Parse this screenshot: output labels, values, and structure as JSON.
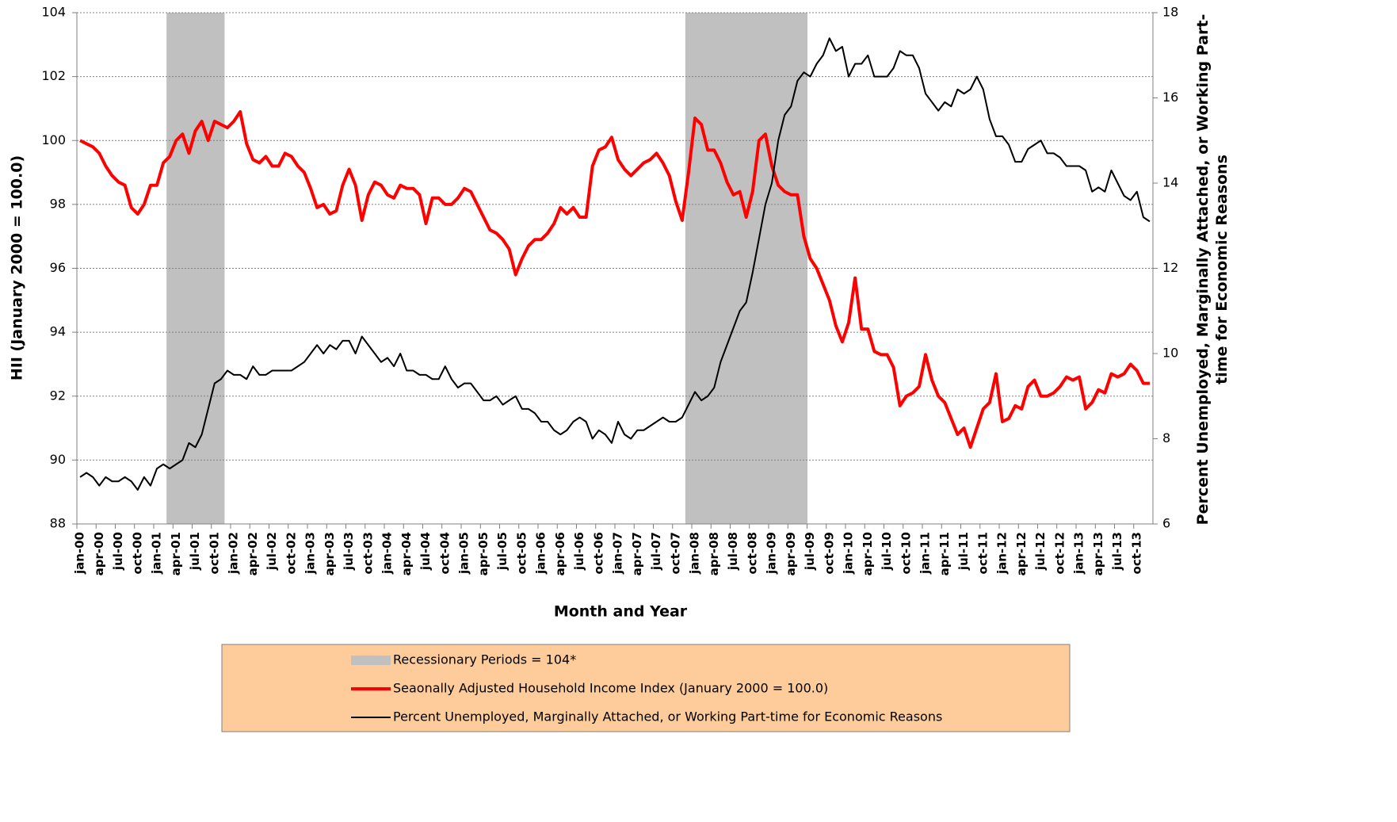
{
  "chart_data": {
    "type": "line",
    "x_label": "Month and Year",
    "y_label": "HII (January 2000 = 100.0)",
    "y2_label": "Percent Unemployed, Marginally Attached, or Working Part-time for Economic Reasons",
    "categories": [
      "jan-00",
      null,
      null,
      "apr-00",
      null,
      null,
      "jul-00",
      null,
      null,
      "oct-00",
      null,
      null,
      "jan-01",
      null,
      null,
      "apr-01",
      null,
      null,
      "jul-01",
      null,
      null,
      "oct-01",
      null,
      null,
      "jan-02",
      null,
      null,
      "apr-02",
      null,
      null,
      "jul-02",
      null,
      null,
      "oct-02",
      null,
      null,
      "jan-03",
      null,
      null,
      "apr-03",
      null,
      null,
      "jul-03",
      null,
      null,
      "oct-03",
      null,
      null,
      "jan-04",
      null,
      null,
      "apr-04",
      null,
      null,
      "jul-04",
      null,
      null,
      "oct-04",
      null,
      null,
      "jan-05",
      null,
      null,
      "apr-05",
      null,
      null,
      "jul-05",
      null,
      null,
      "oct-05",
      null,
      null,
      "jan-06",
      null,
      null,
      "apr-06",
      null,
      null,
      "jul-06",
      null,
      null,
      "oct-06",
      null,
      null,
      "jan-07",
      null,
      null,
      "apr-07",
      null,
      null,
      "jul-07",
      null,
      null,
      "oct-07",
      null,
      null,
      "jan-08",
      null,
      null,
      "apr-08",
      null,
      null,
      "jul-08",
      null,
      null,
      "oct-08",
      null,
      null,
      "jan-09",
      null,
      null,
      "apr-09",
      null,
      null,
      "jul-09",
      null,
      null,
      "oct-09",
      null,
      null,
      "jan-10",
      null,
      null,
      "apr-10",
      null,
      null,
      "jul-10",
      null,
      null,
      "oct-10",
      null,
      null,
      "jan-11",
      null,
      null,
      "apr-11",
      null,
      null,
      "jul-11",
      null,
      null,
      "oct-11",
      null,
      null,
      "jan-12",
      null,
      null,
      "apr-12",
      null,
      null,
      "jul-12",
      null,
      null,
      "oct-12",
      null,
      null,
      "jan-13",
      null,
      null,
      "apr-13",
      null,
      null,
      "jul-13",
      null,
      null,
      "oct-13",
      null,
      null
    ],
    "series": [
      {
        "name": "Recessionary Periods = 104*",
        "type": "bar",
        "color": "#c0c0c0",
        "axis": "y",
        "values": [
          null,
          null,
          null,
          null,
          null,
          null,
          null,
          null,
          null,
          null,
          null,
          null,
          null,
          null,
          104,
          104,
          104,
          104,
          104,
          104,
          104,
          104,
          104,
          null,
          null,
          null,
          null,
          null,
          null,
          null,
          null,
          null,
          null,
          null,
          null,
          null,
          null,
          null,
          null,
          null,
          null,
          null,
          null,
          null,
          null,
          null,
          null,
          null,
          null,
          null,
          null,
          null,
          null,
          null,
          null,
          null,
          null,
          null,
          null,
          null,
          null,
          null,
          null,
          null,
          null,
          null,
          null,
          null,
          null,
          null,
          null,
          null,
          null,
          null,
          null,
          null,
          null,
          null,
          null,
          null,
          null,
          null,
          null,
          null,
          null,
          null,
          null,
          null,
          null,
          null,
          null,
          null,
          null,
          null,
          null,
          104,
          104,
          104,
          104,
          104,
          104,
          104,
          104,
          104,
          104,
          104,
          104,
          104,
          104,
          104,
          104,
          104,
          104,
          104,
          null,
          null,
          null,
          null,
          null,
          null,
          null,
          null,
          null,
          null,
          null,
          null,
          null,
          null,
          null,
          null,
          null,
          null,
          null,
          null,
          null,
          null,
          null,
          null,
          null,
          null,
          null,
          null,
          null,
          null,
          null,
          null,
          null,
          null,
          null,
          null,
          null,
          null,
          null,
          null,
          null,
          null,
          null,
          null,
          null,
          null,
          null,
          null,
          null,
          null,
          null,
          null,
          null,
          null
        ]
      },
      {
        "name": "Seaonally Adjusted Household Income Index (January 2000 = 100.0)",
        "type": "line",
        "color": "#ff0000",
        "axis": "y",
        "values": [
          100.0,
          99.9,
          99.8,
          99.6,
          99.2,
          98.9,
          98.7,
          98.6,
          97.9,
          97.7,
          98.0,
          98.6,
          98.6,
          99.3,
          99.5,
          100.0,
          100.2,
          99.6,
          100.3,
          100.6,
          100.0,
          100.6,
          100.5,
          100.4,
          100.6,
          100.9,
          99.9,
          99.4,
          99.3,
          99.5,
          99.2,
          99.2,
          99.6,
          99.5,
          99.2,
          99.0,
          98.5,
          97.9,
          98.0,
          97.7,
          97.8,
          98.6,
          99.1,
          98.6,
          97.5,
          98.3,
          98.7,
          98.6,
          98.3,
          98.2,
          98.6,
          98.5,
          98.5,
          98.3,
          97.4,
          98.2,
          98.2,
          98.0,
          98.0,
          98.2,
          98.5,
          98.4,
          98.0,
          97.6,
          97.2,
          97.1,
          96.9,
          96.6,
          95.8,
          96.3,
          96.7,
          96.9,
          96.9,
          97.1,
          97.4,
          97.9,
          97.7,
          97.9,
          97.6,
          97.6,
          99.2,
          99.7,
          99.8,
          100.1,
          99.4,
          99.1,
          98.9,
          99.1,
          99.3,
          99.4,
          99.6,
          99.3,
          98.9,
          98.1,
          97.5,
          99.0,
          100.7,
          100.5,
          99.7,
          99.7,
          99.3,
          98.7,
          98.3,
          98.4,
          97.6,
          98.4,
          100.0,
          100.2,
          99.2,
          98.6,
          98.4,
          98.3,
          98.3,
          97.0,
          96.3,
          96.0,
          95.5,
          95.0,
          94.2,
          93.7,
          94.3,
          95.7,
          94.1,
          94.1,
          93.4,
          93.3,
          93.3,
          92.9,
          91.7,
          92.0,
          92.1,
          92.3,
          93.3,
          92.5,
          92.0,
          91.8,
          91.3,
          90.8,
          91.0,
          90.4,
          91.0,
          91.6,
          91.8,
          92.7,
          91.2,
          91.3,
          91.7,
          91.6,
          92.3,
          92.5,
          92.0,
          92.0,
          92.1,
          92.3,
          92.6,
          92.5,
          92.6,
          91.6,
          91.8,
          92.2,
          92.1,
          92.7,
          92.6,
          92.7,
          93.0,
          92.8,
          92.4,
          92.4
        ]
      },
      {
        "name": "Percent Unemployed,  Marginally Attached, or Working Part-time for Economic Reasons",
        "type": "line",
        "color": "#000000",
        "axis": "y2",
        "values": [
          7.1,
          7.2,
          7.1,
          6.9,
          7.1,
          7.0,
          7.0,
          7.1,
          7.0,
          6.8,
          7.1,
          6.9,
          7.3,
          7.4,
          7.3,
          7.4,
          7.5,
          7.9,
          7.8,
          8.1,
          8.7,
          9.3,
          9.4,
          9.6,
          9.5,
          9.5,
          9.4,
          9.7,
          9.5,
          9.5,
          9.6,
          9.6,
          9.6,
          9.6,
          9.7,
          9.8,
          10.0,
          10.2,
          10.0,
          10.2,
          10.1,
          10.3,
          10.3,
          10.0,
          10.4,
          10.2,
          10.0,
          9.8,
          9.9,
          9.7,
          10.0,
          9.6,
          9.6,
          9.5,
          9.5,
          9.4,
          9.4,
          9.7,
          9.4,
          9.2,
          9.3,
          9.3,
          9.1,
          8.9,
          8.9,
          9.0,
          8.8,
          8.9,
          9.0,
          8.7,
          8.7,
          8.6,
          8.4,
          8.4,
          8.2,
          8.1,
          8.2,
          8.4,
          8.5,
          8.4,
          8.0,
          8.2,
          8.1,
          7.9,
          8.4,
          8.1,
          8.0,
          8.2,
          8.2,
          8.3,
          8.4,
          8.5,
          8.4,
          8.4,
          8.5,
          8.8,
          9.1,
          8.9,
          9.0,
          9.2,
          9.8,
          10.2,
          10.6,
          11.0,
          11.2,
          11.9,
          12.7,
          13.5,
          14.0,
          15.0,
          15.6,
          15.8,
          16.4,
          16.6,
          16.5,
          16.8,
          17.0,
          17.4,
          17.1,
          17.2,
          16.5,
          16.8,
          16.8,
          17.0,
          16.5,
          16.5,
          16.5,
          16.7,
          17.1,
          17.0,
          17.0,
          16.7,
          16.1,
          15.9,
          15.7,
          15.9,
          15.8,
          16.2,
          16.1,
          16.2,
          16.5,
          16.2,
          15.5,
          15.1,
          15.1,
          14.9,
          14.5,
          14.5,
          14.8,
          14.9,
          15.0,
          14.7,
          14.7,
          14.6,
          14.4,
          14.4,
          14.4,
          14.3,
          13.8,
          13.9,
          13.8,
          14.3,
          14.0,
          13.7,
          13.6,
          13.8,
          13.2,
          13.1
        ]
      }
    ],
    "ylim": [
      88,
      104
    ],
    "yticks": [
      88,
      90,
      92,
      94,
      96,
      98,
      100,
      102,
      104
    ],
    "y2lim": [
      6,
      18
    ],
    "y2ticks": [
      6,
      8,
      10,
      12,
      14,
      16,
      18
    ],
    "grid": true,
    "legend": "bottom",
    "legend_color": "#fdcc9a"
  }
}
